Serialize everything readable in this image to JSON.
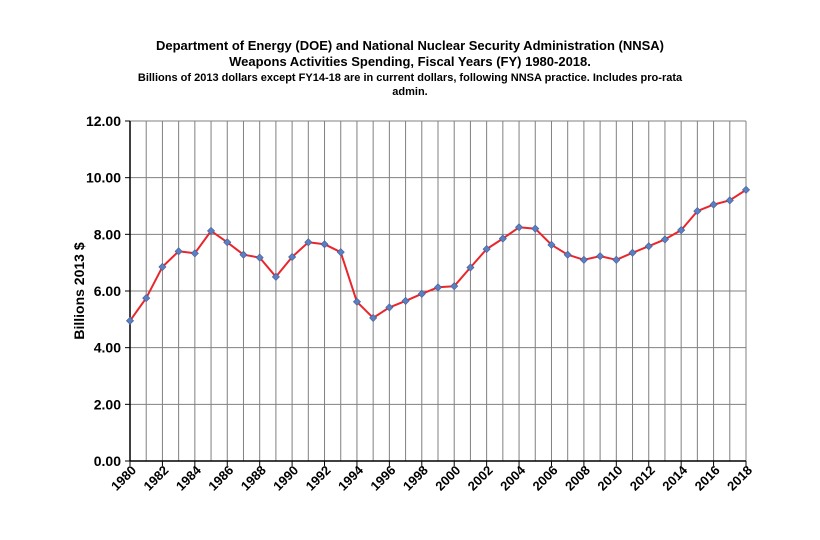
{
  "chart_data": {
    "type": "line",
    "title_lines": [
      "Department of Energy (DOE) and National Nuclear Security Administration (NNSA)",
      "Weapons Activities Spending, Fiscal Years (FY) 1980-2018."
    ],
    "subtitle": "Billions of 2013 dollars except FY14-18 are in current dollars, following NNSA practice.  Includes pro-rata admin.",
    "xlabel": "",
    "ylabel": "Billions  2013 $",
    "ylim": [
      0,
      12
    ],
    "yticks": [
      "0.00",
      "2.00",
      "4.00",
      "6.00",
      "8.00",
      "10.00",
      "12.00"
    ],
    "xlim": [
      1980,
      2018
    ],
    "xtick_labels": [
      "1980",
      "1982",
      "1984",
      "1986",
      "1988",
      "1990",
      "1992",
      "1994",
      "1996",
      "1998",
      "2000",
      "2002",
      "2004",
      "2006",
      "2008",
      "2010",
      "2012",
      "2014",
      "2016",
      "2018"
    ],
    "grid": true,
    "legend": "none",
    "line_color": "#e8262b",
    "marker_color": "#5b7fbf",
    "x": [
      1980,
      1981,
      1982,
      1983,
      1984,
      1985,
      1986,
      1987,
      1988,
      1989,
      1990,
      1991,
      1992,
      1993,
      1994,
      1995,
      1996,
      1997,
      1998,
      1999,
      2000,
      2001,
      2002,
      2003,
      2004,
      2005,
      2006,
      2007,
      2008,
      2009,
      2010,
      2011,
      2012,
      2013,
      2014,
      2015,
      2016,
      2017,
      2018
    ],
    "values": [
      4.95,
      5.75,
      6.85,
      7.4,
      7.33,
      8.12,
      7.72,
      7.28,
      7.18,
      6.5,
      7.2,
      7.72,
      7.65,
      7.37,
      5.62,
      5.05,
      5.42,
      5.65,
      5.9,
      6.13,
      6.17,
      6.83,
      7.48,
      7.85,
      8.25,
      8.2,
      7.63,
      7.28,
      7.1,
      7.23,
      7.1,
      7.35,
      7.58,
      7.82,
      8.15,
      8.82,
      9.05,
      9.2,
      9.57
    ]
  }
}
